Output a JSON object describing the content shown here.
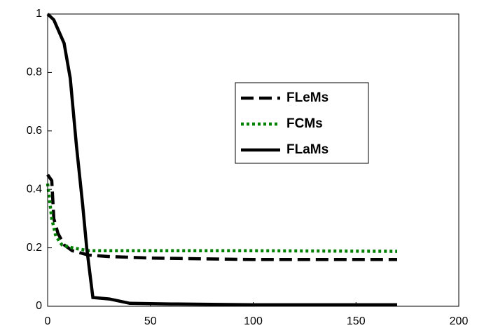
{
  "chart_data": {
    "type": "line",
    "series": [
      {
        "name": "FLeMs",
        "color": "#000000",
        "dash": "dashed",
        "x": [
          0,
          2,
          3,
          5,
          8,
          12,
          20,
          30,
          50,
          100,
          170
        ],
        "values": [
          0.45,
          0.43,
          0.3,
          0.25,
          0.21,
          0.19,
          0.175,
          0.17,
          0.165,
          0.16,
          0.16
        ]
      },
      {
        "name": "FCMs",
        "color": "#008000",
        "dash": "dotted",
        "x": [
          0,
          2,
          4,
          7,
          12,
          20,
          50,
          100,
          170
        ],
        "values": [
          0.42,
          0.3,
          0.24,
          0.21,
          0.2,
          0.19,
          0.19,
          0.19,
          0.188
        ]
      },
      {
        "name": "FLaMs",
        "color": "#000000",
        "dash": "solid",
        "x": [
          0,
          3,
          8,
          11,
          14,
          17,
          19,
          22,
          30,
          40,
          60,
          100,
          170
        ],
        "values": [
          1.0,
          0.98,
          0.9,
          0.78,
          0.55,
          0.35,
          0.2,
          0.03,
          0.025,
          0.01,
          0.008,
          0.005,
          0.005
        ]
      }
    ],
    "xlim": [
      0,
      200
    ],
    "xticks": [
      0,
      50,
      100,
      150,
      200
    ],
    "ylim": [
      0,
      1
    ],
    "yticks": [
      0,
      0.2,
      0.4,
      0.6,
      0.8,
      1
    ],
    "grid": false,
    "legend": "northeast"
  }
}
